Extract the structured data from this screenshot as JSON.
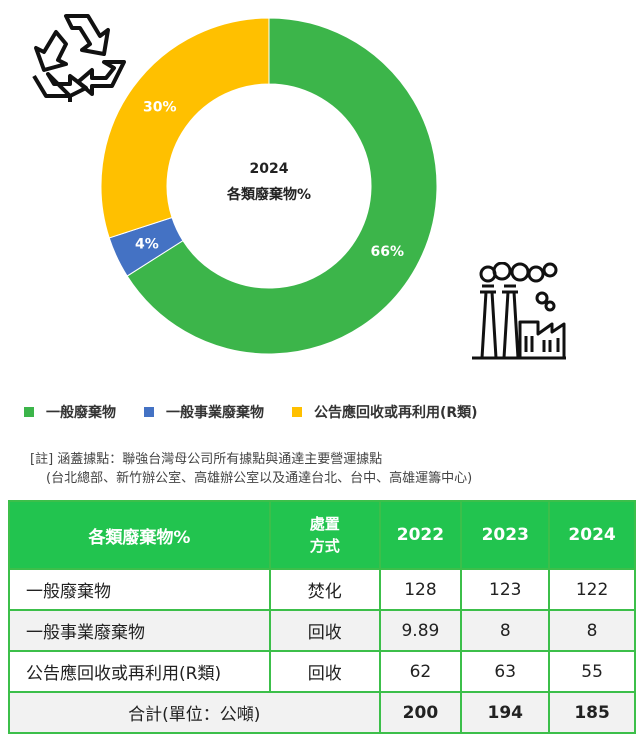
{
  "chart_data": {
    "type": "pie",
    "style": "donut",
    "center_label": {
      "year": "2024",
      "title": "各類廢棄物%"
    },
    "slices": [
      {
        "name": "一般廢棄物",
        "value": 66,
        "label": "66%",
        "color": "#3cb54a"
      },
      {
        "name": "一般事業廢棄物",
        "value": 4,
        "label": "4%",
        "color": "#4472c4"
      },
      {
        "name": "公告應回收或再利用(R類)",
        "value": 30,
        "label": "30%",
        "color": "#ffc000"
      }
    ],
    "legend_position": "bottom-left"
  },
  "icons": {
    "recycle": "recycle-icon",
    "factory": "factory-icon"
  },
  "note": {
    "line1": "[註] 涵蓋據點：聯強台灣母公司所有據點與通達主要營運據點",
    "line2": "(台北總部、新竹辦公室、高雄辦公室以及通達台北、台中、高雄運籌中心)"
  },
  "table": {
    "headers": {
      "category": "各類廢棄物%",
      "method_line1": "處置",
      "method_line2": "方式",
      "y2022": "2022",
      "y2023": "2023",
      "y2024": "2024"
    },
    "rows": [
      {
        "name": "一般廢棄物",
        "method": "焚化",
        "y2022": "128",
        "y2023": "123",
        "y2024": "122"
      },
      {
        "name": "一般事業廢棄物",
        "method": "回收",
        "y2022": "9.89",
        "y2023": "8",
        "y2024": "8"
      },
      {
        "name": "公告應回收或再利用(R類)",
        "method": "回收",
        "y2022": "62",
        "y2023": "63",
        "y2024": "55"
      }
    ],
    "total": {
      "label": "合計(單位：公噸)",
      "y2022": "200",
      "y2023": "194",
      "y2024": "185"
    }
  }
}
